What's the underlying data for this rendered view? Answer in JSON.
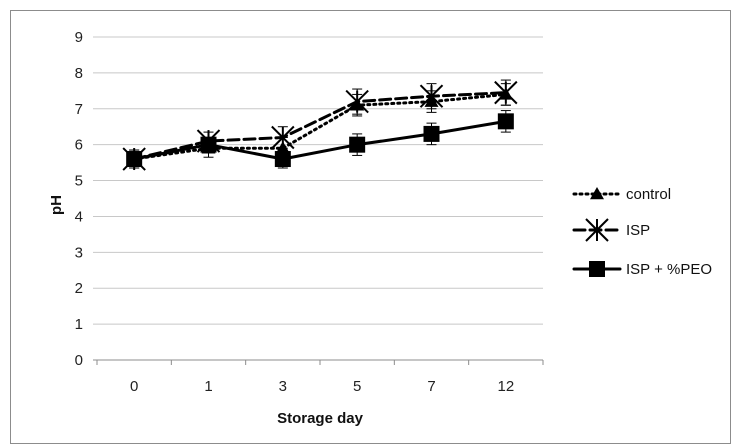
{
  "chart_data": {
    "type": "line",
    "xlabel": "Storage day",
    "ylabel": "pH",
    "categories": [
      "0",
      "1",
      "3",
      "5",
      "7",
      "12"
    ],
    "ylim": [
      0,
      9
    ],
    "yticks": [
      "0",
      "1",
      "2",
      "3",
      "4",
      "5",
      "6",
      "7",
      "8",
      "9"
    ],
    "grid": "horizontal",
    "legend_position": "right",
    "series": [
      {
        "name": "control",
        "values": [
          5.6,
          5.9,
          5.9,
          7.1,
          7.2,
          7.4
        ],
        "error": [
          0.25,
          0.25,
          0.3,
          0.3,
          0.3,
          0.3
        ],
        "line_style": "dotted",
        "marker": "triangle",
        "color": "#000000"
      },
      {
        "name": "ISP",
        "values": [
          5.6,
          6.1,
          6.2,
          7.2,
          7.35,
          7.45
        ],
        "error": [
          0.25,
          0.25,
          0.3,
          0.35,
          0.35,
          0.35
        ],
        "line_style": "dashed",
        "marker": "asterisk",
        "color": "#000000"
      },
      {
        "name": "ISP + %PEO",
        "values": [
          5.6,
          6.0,
          5.6,
          6.0,
          6.3,
          6.65
        ],
        "error": [
          0.2,
          0.2,
          0.25,
          0.3,
          0.3,
          0.3
        ],
        "line_style": "solid",
        "marker": "square",
        "color": "#000000"
      }
    ]
  }
}
